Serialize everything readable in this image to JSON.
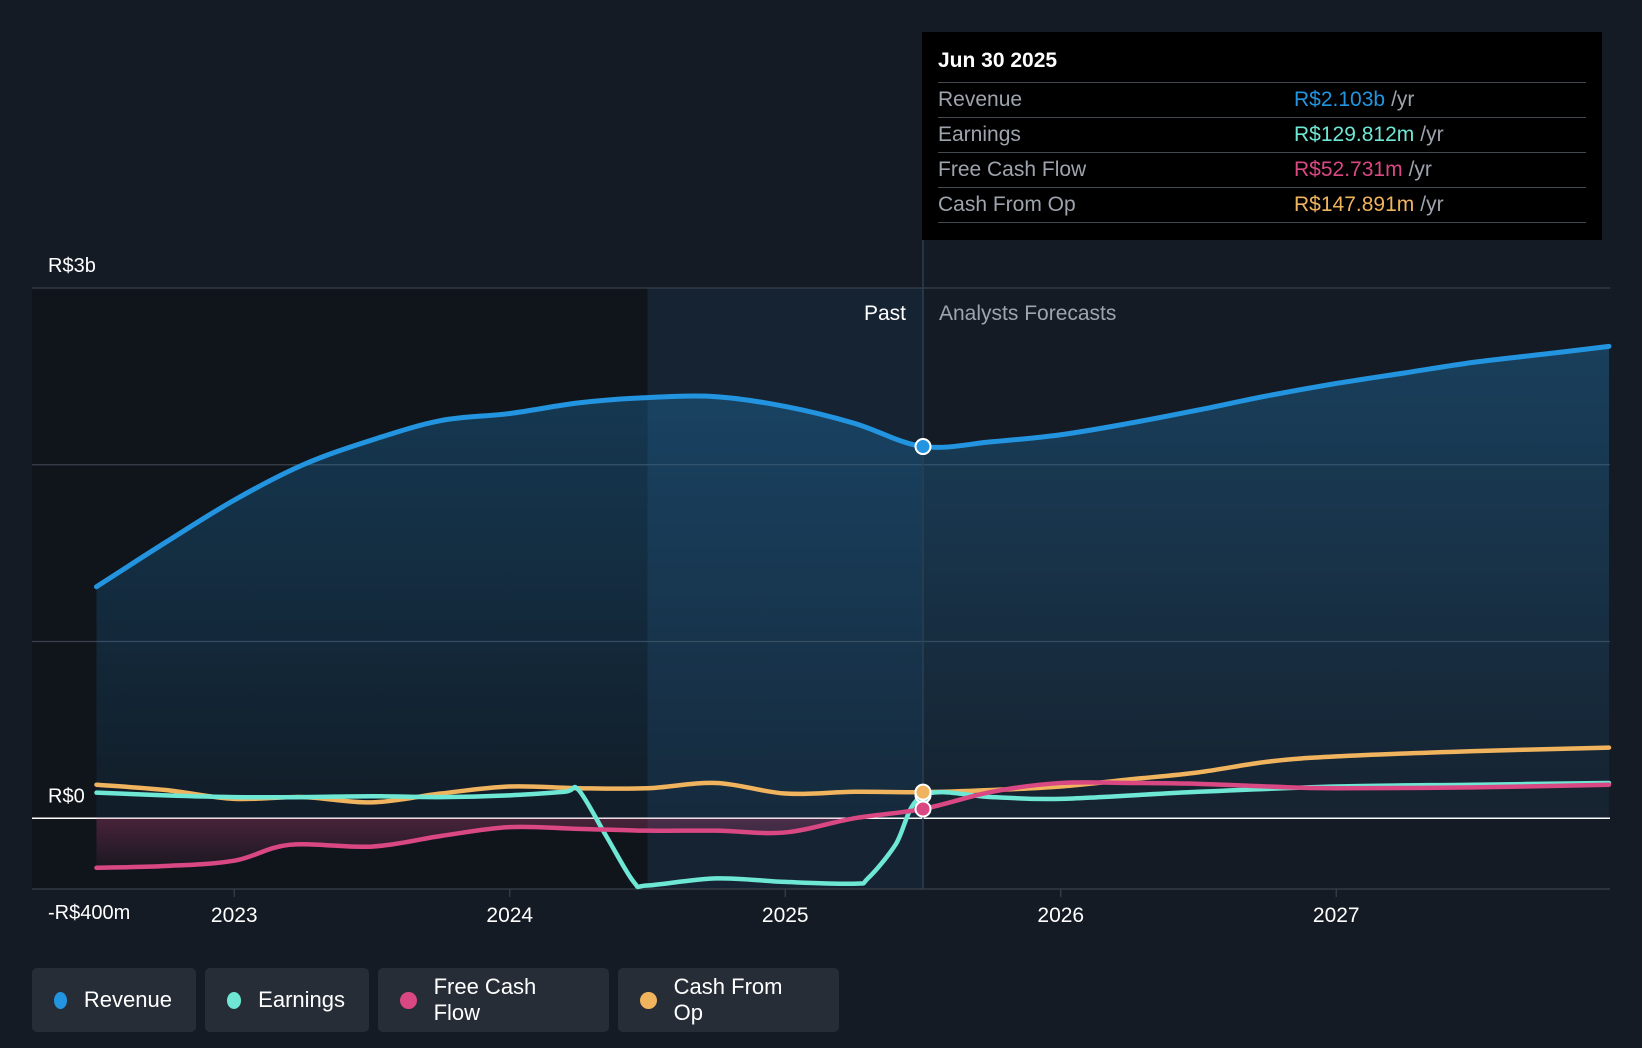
{
  "tooltip": {
    "date": "Jun 30 2025",
    "rows": [
      {
        "label": "Revenue",
        "value": "R$2.103b",
        "unit": "/yr",
        "color": "#2394df"
      },
      {
        "label": "Earnings",
        "value": "R$129.812m",
        "unit": "/yr",
        "color": "#6ee7d5"
      },
      {
        "label": "Free Cash Flow",
        "value": "R$52.731m",
        "unit": "/yr",
        "color": "#d94883"
      },
      {
        "label": "Cash From Op",
        "value": "R$147.891m",
        "unit": "/yr",
        "color": "#f0b35e"
      }
    ]
  },
  "legend": [
    {
      "label": "Revenue",
      "color": "#2394df"
    },
    {
      "label": "Earnings",
      "color": "#6ee7d5"
    },
    {
      "label": "Free Cash Flow",
      "color": "#d94883"
    },
    {
      "label": "Cash From Op",
      "color": "#f0b35e"
    }
  ],
  "chart_data": {
    "type": "line",
    "title": "",
    "xlabel": "",
    "ylabel": "",
    "ylim": [
      -400,
      3000
    ],
    "y_unit": "R$ millions",
    "xlim": [
      2022.5,
      2027.99
    ],
    "y_tick_labels": [
      {
        "value": 3000,
        "label": "R$3b"
      },
      {
        "value": 0,
        "label": "R$0"
      },
      {
        "value": -400,
        "label": "-R$400m"
      }
    ],
    "y_gridlines": [
      3000,
      2000,
      1000,
      0,
      -400
    ],
    "x_tick_labels": [
      {
        "value": 2023,
        "label": "2023"
      },
      {
        "value": 2024,
        "label": "2024"
      },
      {
        "value": 2025,
        "label": "2025"
      },
      {
        "value": 2026,
        "label": "2026"
      },
      {
        "value": 2027,
        "label": "2027"
      }
    ],
    "past_label": "Past",
    "forecast_label": "Analysts Forecasts",
    "divider_x": 2025.5,
    "highlight_start_x": 2024.5,
    "series": [
      {
        "name": "Revenue",
        "color": "#2394df",
        "points": [
          [
            2022.5,
            1310
          ],
          [
            2022.75,
            1560
          ],
          [
            2023.0,
            1800
          ],
          [
            2023.25,
            2000
          ],
          [
            2023.5,
            2140
          ],
          [
            2023.75,
            2250
          ],
          [
            2024.0,
            2290
          ],
          [
            2024.25,
            2350
          ],
          [
            2024.5,
            2380
          ],
          [
            2024.75,
            2385
          ],
          [
            2025.0,
            2330
          ],
          [
            2025.25,
            2235
          ],
          [
            2025.5,
            2103
          ],
          [
            2025.75,
            2130
          ],
          [
            2026.0,
            2170
          ],
          [
            2026.25,
            2235
          ],
          [
            2026.5,
            2310
          ],
          [
            2026.75,
            2390
          ],
          [
            2027.0,
            2460
          ],
          [
            2027.25,
            2520
          ],
          [
            2027.5,
            2580
          ],
          [
            2027.75,
            2625
          ],
          [
            2027.99,
            2670
          ]
        ],
        "highlight": [
          2025.5,
          2103
        ]
      },
      {
        "name": "Earnings",
        "color": "#6ee7d5",
        "points": [
          [
            2022.5,
            145
          ],
          [
            2022.75,
            130
          ],
          [
            2023.0,
            120
          ],
          [
            2023.25,
            120
          ],
          [
            2023.5,
            125
          ],
          [
            2023.75,
            120
          ],
          [
            2024.0,
            130
          ],
          [
            2024.2,
            150
          ],
          [
            2024.25,
            160
          ],
          [
            2024.35,
            -100
          ],
          [
            2024.45,
            -360
          ],
          [
            2024.5,
            -380
          ],
          [
            2024.75,
            -340
          ],
          [
            2025.0,
            -360
          ],
          [
            2025.25,
            -370
          ],
          [
            2025.3,
            -340
          ],
          [
            2025.4,
            -150
          ],
          [
            2025.5,
            129.812
          ],
          [
            2025.75,
            120
          ],
          [
            2026.0,
            110
          ],
          [
            2026.5,
            150
          ],
          [
            2027.0,
            180
          ],
          [
            2027.5,
            190
          ],
          [
            2027.99,
            200
          ]
        ],
        "highlight": [
          2025.5,
          129.812
        ]
      },
      {
        "name": "Free Cash Flow",
        "color": "#d94883",
        "points": [
          [
            2022.5,
            -280
          ],
          [
            2022.75,
            -270
          ],
          [
            2023.0,
            -240
          ],
          [
            2023.2,
            -150
          ],
          [
            2023.5,
            -160
          ],
          [
            2023.75,
            -100
          ],
          [
            2024.0,
            -50
          ],
          [
            2024.25,
            -60
          ],
          [
            2024.5,
            -70
          ],
          [
            2024.75,
            -70
          ],
          [
            2025.0,
            -80
          ],
          [
            2025.25,
            0
          ],
          [
            2025.5,
            52.731
          ],
          [
            2025.75,
            150
          ],
          [
            2026.0,
            200
          ],
          [
            2026.25,
            200
          ],
          [
            2026.5,
            195
          ],
          [
            2026.75,
            180
          ],
          [
            2027.0,
            170
          ],
          [
            2027.5,
            175
          ],
          [
            2027.99,
            190
          ]
        ],
        "highlight": [
          2025.5,
          52.731
        ]
      },
      {
        "name": "Cash From Op",
        "color": "#f0b35e",
        "points": [
          [
            2022.5,
            190
          ],
          [
            2022.75,
            160
          ],
          [
            2023.0,
            110
          ],
          [
            2023.25,
            120
          ],
          [
            2023.5,
            90
          ],
          [
            2023.75,
            140
          ],
          [
            2024.0,
            180
          ],
          [
            2024.25,
            170
          ],
          [
            2024.5,
            170
          ],
          [
            2024.75,
            200
          ],
          [
            2025.0,
            140
          ],
          [
            2025.25,
            150
          ],
          [
            2025.5,
            147.891
          ],
          [
            2025.75,
            160
          ],
          [
            2026.0,
            180
          ],
          [
            2026.25,
            220
          ],
          [
            2026.5,
            260
          ],
          [
            2026.75,
            320
          ],
          [
            2027.0,
            350
          ],
          [
            2027.5,
            380
          ],
          [
            2027.99,
            400
          ]
        ],
        "highlight": [
          2025.5,
          147.891
        ]
      }
    ]
  }
}
